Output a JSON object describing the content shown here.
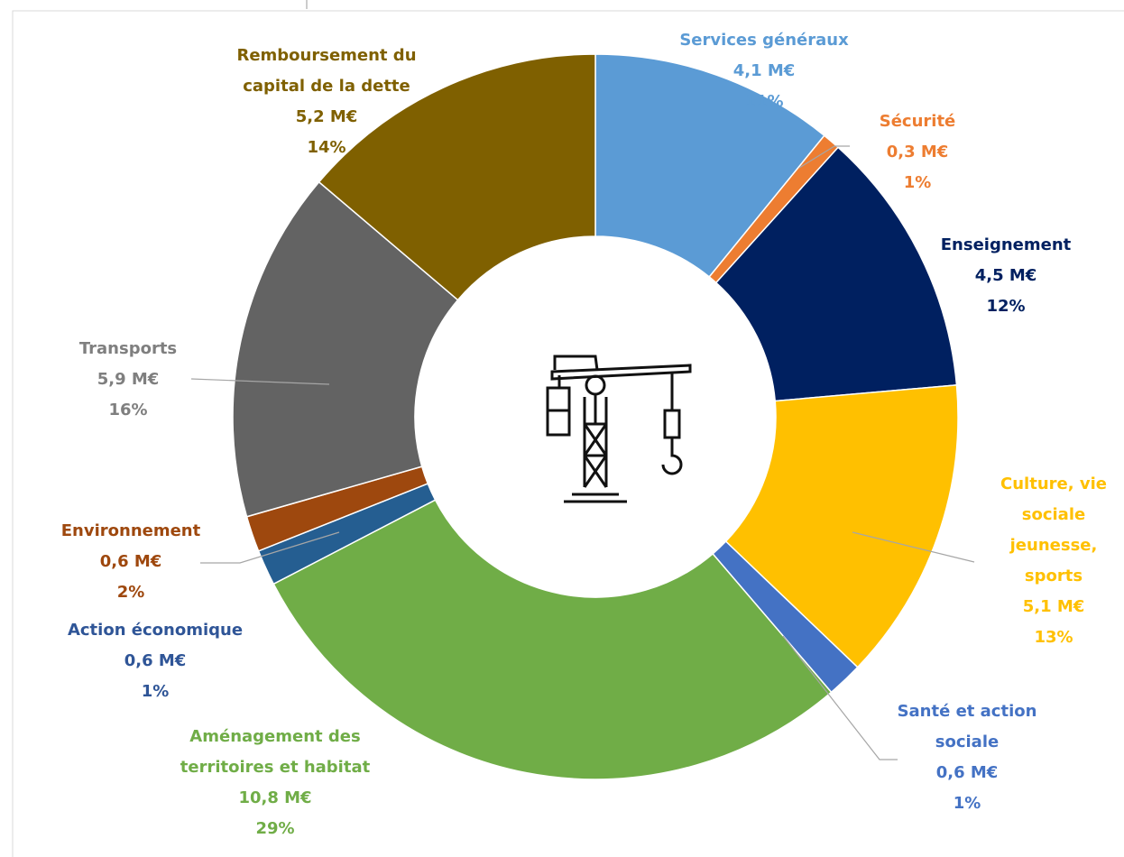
{
  "chart_data": {
    "type": "donut",
    "categories": [
      "Services généraux",
      "Sécurité",
      "Enseignement",
      "Culture, vie sociale jeunesse, sports",
      "Santé et action sociale",
      "Aménagement des territoires et habitat",
      "Action économique",
      "Environnement",
      "Transports",
      "Remboursement du capital de la dette"
    ],
    "values": [
      4.1,
      0.3,
      4.5,
      5.1,
      0.6,
      10.8,
      0.6,
      0.6,
      5.9,
      5.2
    ],
    "value_labels": [
      "4,1 M€",
      "0,3 M€",
      "4,5 M€",
      "5,1 M€",
      "0,6 M€",
      "10,8 M€",
      "0,6 M€",
      "0,6 M€",
      "5,9 M€",
      "5,2 M€"
    ],
    "shares": [
      11,
      1,
      12,
      13,
      1,
      29,
      1,
      2,
      16,
      14
    ],
    "share_labels": [
      "11%",
      "1%",
      "12%",
      "13%",
      "1%",
      "29%",
      "1%",
      "2%",
      "16%",
      "14%"
    ],
    "colors": [
      "#5b9bd5",
      "#ed7d31",
      "#002060",
      "#ffc000",
      "#4472c4",
      "#70ad47",
      "#255e91",
      "#9e480e",
      "#636363",
      "#7f6000"
    ]
  }
}
